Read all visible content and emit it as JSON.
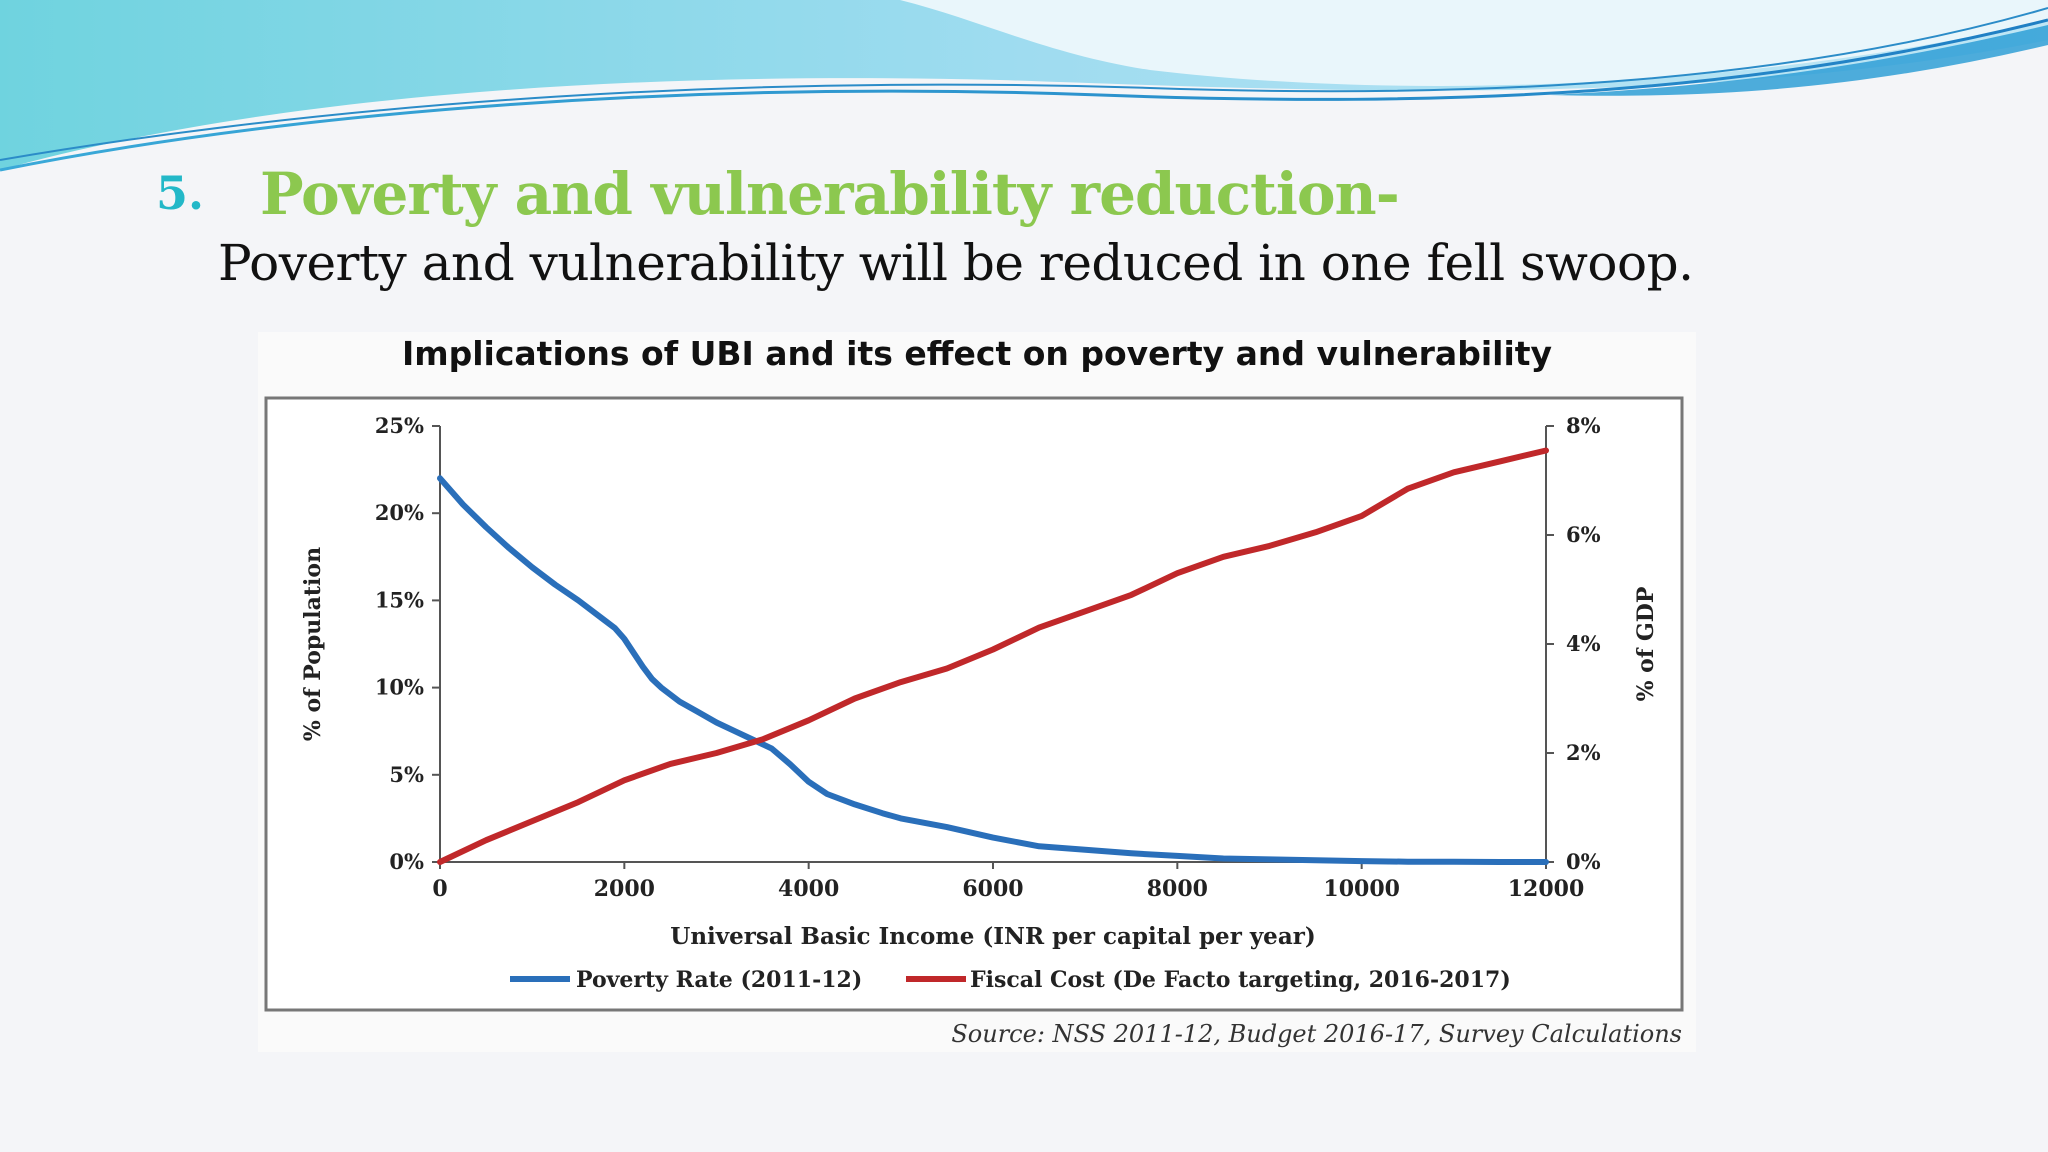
{
  "heading": {
    "number": "5.",
    "title": "Poverty and vulnerability reduction-"
  },
  "subtitle": "Poverty and vulnerability will be reduced in one fell swoop.",
  "colors": {
    "heading_number": "#23b8c8",
    "heading_title": "#8cc84f",
    "poverty_series": "#2a6fba",
    "fiscal_series": "#c0282a"
  },
  "chart_data": {
    "type": "line",
    "title": "Implications of UBI and its effect on poverty and vulnerability",
    "xlabel": "Universal Basic Income (INR per capital per year)",
    "ylabel_left": "% of Population",
    "ylabel_right": "% of GDP",
    "xlim": [
      0,
      12000
    ],
    "ylim_left": [
      0,
      25
    ],
    "ylim_right": [
      0,
      8
    ],
    "x_ticks": [
      "0",
      "2000",
      "4000",
      "6000",
      "8000",
      "10000",
      "12000"
    ],
    "y_ticks_left": [
      "0%",
      "5%",
      "10%",
      "15%",
      "20%",
      "25%"
    ],
    "y_ticks_right": [
      "0%",
      "2%",
      "4%",
      "6%",
      "8%"
    ],
    "grid": false,
    "legend_position": "bottom",
    "series": [
      {
        "name": "Poverty Rate (2011-12)",
        "axis": "left",
        "color": "#2a6fba",
        "x": [
          0,
          250,
          500,
          750,
          1000,
          1250,
          1500,
          1750,
          1900,
          2000,
          2100,
          2200,
          2300,
          2400,
          2600,
          2800,
          3000,
          3200,
          3400,
          3600,
          3800,
          4000,
          4200,
          4500,
          4800,
          5000,
          5500,
          6000,
          6500,
          7000,
          7500,
          8000,
          8500,
          9000,
          9500,
          10000,
          10500,
          11000,
          11500,
          12000
        ],
        "values": [
          22.0,
          20.5,
          19.2,
          18.0,
          16.9,
          15.9,
          15.0,
          14.0,
          13.4,
          12.8,
          12.0,
          11.2,
          10.5,
          10.0,
          9.2,
          8.6,
          8.0,
          7.5,
          7.0,
          6.5,
          5.6,
          4.6,
          3.9,
          3.3,
          2.8,
          2.5,
          2.0,
          1.4,
          0.9,
          0.7,
          0.5,
          0.35,
          0.2,
          0.15,
          0.1,
          0.05,
          0.02,
          0.01,
          0.0,
          0.0
        ]
      },
      {
        "name": "Fiscal Cost (De Facto targeting, 2016-2017)",
        "axis": "right",
        "color": "#c0282a",
        "x": [
          0,
          500,
          1000,
          1500,
          2000,
          2500,
          3000,
          3500,
          4000,
          4500,
          5000,
          5500,
          6000,
          6500,
          7000,
          7500,
          8000,
          8500,
          9000,
          9500,
          10000,
          10500,
          11000,
          11500,
          12000
        ],
        "values": [
          0.0,
          0.4,
          0.75,
          1.1,
          1.5,
          1.8,
          2.0,
          2.25,
          2.6,
          3.0,
          3.3,
          3.55,
          3.9,
          4.3,
          4.6,
          4.9,
          5.3,
          5.6,
          5.8,
          6.05,
          6.35,
          6.85,
          7.15,
          7.35,
          7.55
        ]
      }
    ],
    "source": "Source: NSS 2011-12, Budget 2016-17, Survey Calculations"
  }
}
